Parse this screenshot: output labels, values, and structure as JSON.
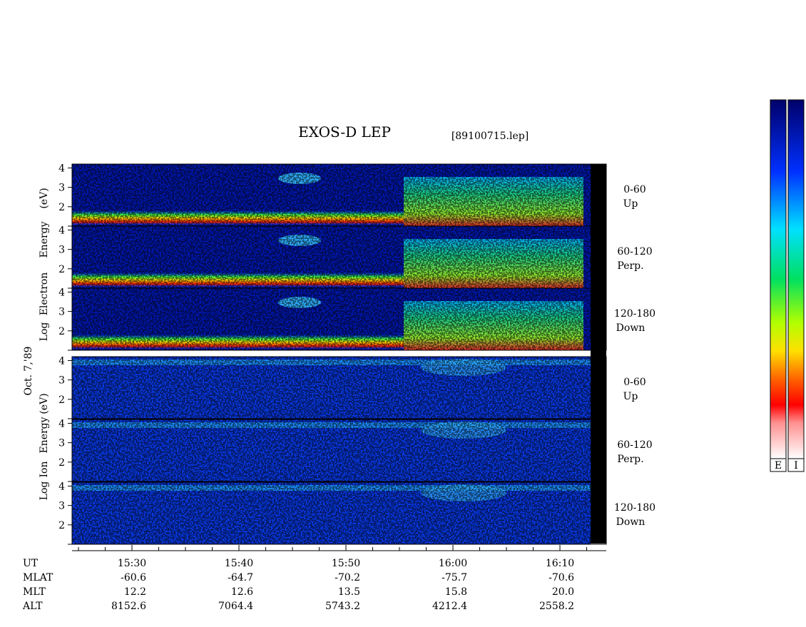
{
  "title": "EXOS-D LEP",
  "file": "[89100715.lep]",
  "date": "Oct. 7,'89",
  "groups": [
    {
      "axis_label": [
        "Log",
        "Electron",
        "Energy",
        "(eV)"
      ],
      "panels": [
        {
          "channel": "0-60",
          "direction": "Up"
        },
        {
          "channel": "60-120",
          "direction": "Perp."
        },
        {
          "channel": "120-180",
          "direction": "Down"
        }
      ]
    },
    {
      "axis_label": [
        "Log",
        "Ion",
        "Energy",
        "(eV)"
      ],
      "panels": [
        {
          "channel": "0-60",
          "direction": "Up"
        },
        {
          "channel": "60-120",
          "direction": "Perp."
        },
        {
          "channel": "120-180",
          "direction": "Down"
        }
      ]
    }
  ],
  "ylim": [
    1,
    4.2
  ],
  "yticks": [
    2,
    3,
    4
  ],
  "ephemeris": [
    {
      "label": "UT",
      "values": [
        "15:30",
        "15:40",
        "15:50",
        "16:00",
        "16:10"
      ]
    },
    {
      "label": "MLAT",
      "values": [
        "-60.6",
        "-64.7",
        "-70.2",
        "-75.7",
        "-70.6"
      ]
    },
    {
      "label": "MLT",
      "values": [
        "12.2",
        "12.6",
        "13.5",
        "15.8",
        "20.0"
      ]
    },
    {
      "label": "ALT",
      "values": [
        "8152.6",
        "7064.4",
        "5743.2",
        "4212.4",
        "2558.2"
      ]
    }
  ],
  "colorbars": [
    "E",
    "I"
  ]
}
